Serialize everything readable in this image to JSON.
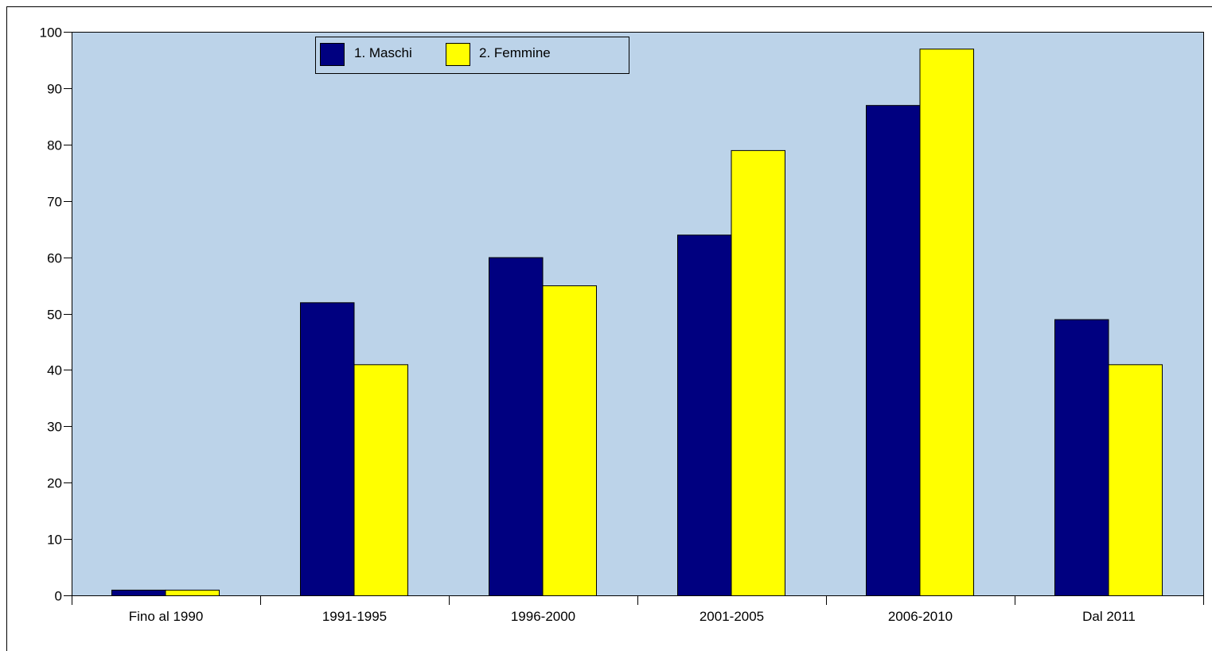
{
  "chart_data": {
    "type": "bar",
    "categories": [
      "Fino al 1990",
      "1991-1995",
      "1996-2000",
      "2001-2005",
      "2006-2010",
      "Dal 2011"
    ],
    "series": [
      {
        "name": "1. Maschi",
        "values": [
          1,
          52,
          60,
          64,
          87,
          49
        ],
        "color": "#000080"
      },
      {
        "name": "2. Femmine",
        "values": [
          1,
          41,
          55,
          79,
          97,
          41
        ],
        "color": "#ffff00"
      }
    ],
    "title": "",
    "xlabel": "",
    "ylabel": "",
    "ylim": [
      0,
      100
    ],
    "yticks": [
      "0",
      "10",
      "20",
      "30",
      "40",
      "50",
      "60",
      "70",
      "80",
      "90",
      "100"
    ],
    "legend_position": "top-center",
    "plot_background": "#bcd3e9",
    "grid": false
  }
}
